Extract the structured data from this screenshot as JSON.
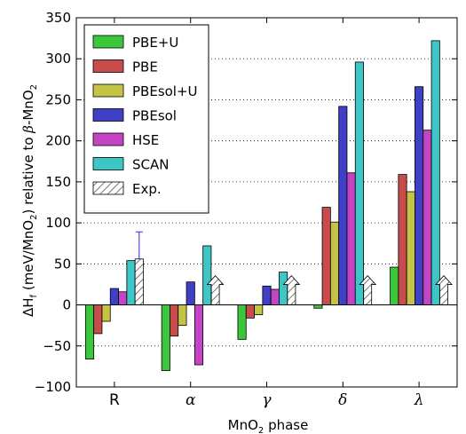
{
  "chart_data": {
    "type": "bar",
    "xlabel": "MnO₂ phase",
    "ylabel": "ΔH_f (meV/MnO₂) relative to β-MnO₂",
    "ylabel_parts": {
      "delta_h": "ΔH",
      "sub_f": "f",
      "unit_open": " (meV/MnO",
      "sub_2a": "2",
      "unit_close": ") relative to ",
      "beta": "β",
      "phase": "-MnO",
      "sub_2b": "2"
    },
    "xlabel_parts": {
      "main": "MnO",
      "sub": "2",
      "rest": " phase"
    },
    "ylim": [
      -100,
      350
    ],
    "yticks": [
      -100,
      -50,
      0,
      50,
      100,
      150,
      200,
      250,
      300,
      350
    ],
    "ytick_labels": [
      "−100",
      "−50",
      "0",
      "50",
      "100",
      "150",
      "200",
      "250",
      "300",
      "350"
    ],
    "grid": "horizontal dotted",
    "legend_position": "top-left",
    "categories": [
      "R",
      "α",
      "γ",
      "δ",
      "λ"
    ],
    "series": [
      {
        "name": "PBE+U",
        "color": "#3cc63c",
        "values": [
          -66,
          -80,
          -42,
          -4,
          46
        ]
      },
      {
        "name": "PBE",
        "color": "#c94c4c",
        "values": [
          -35,
          -38,
          -16,
          119,
          159
        ]
      },
      {
        "name": "PBEsol+U",
        "color": "#c4c444",
        "values": [
          -20,
          -25,
          -12,
          101,
          138
        ]
      },
      {
        "name": "PBEsol",
        "color": "#4040c4",
        "values": [
          20,
          28,
          23,
          242,
          266
        ]
      },
      {
        "name": "HSE",
        "color": "#c445c4",
        "values": [
          16,
          -73,
          19,
          161,
          213
        ]
      },
      {
        "name": "SCAN",
        "color": "#3cc6c6",
        "values": [
          54,
          72,
          40,
          296,
          322
        ]
      },
      {
        "name": "Exp.",
        "color": "#ffffff",
        "hatch": true,
        "values": [
          56,
          null,
          null,
          null,
          null
        ],
        "error": [
          33,
          null,
          null,
          null,
          null
        ],
        "lower_bound_arrow": [
          false,
          true,
          true,
          true,
          true
        ]
      }
    ]
  }
}
